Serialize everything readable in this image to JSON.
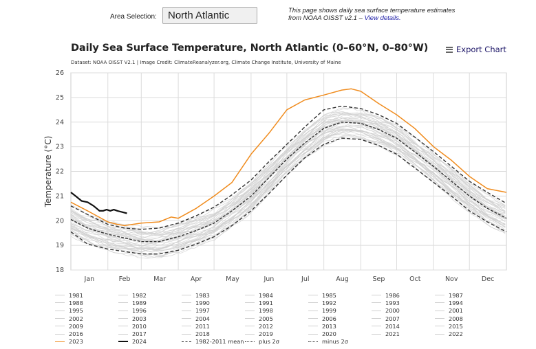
{
  "header": {
    "area_label": "Area Selection:",
    "area_value": "North Atlantic",
    "info_text": "This page shows daily sea surface temperature estimates from NOAA OISST v2.1 – ",
    "info_link": "View details."
  },
  "export_label": "Export Chart",
  "colors": {
    "year": "#cfcfcf",
    "y2023": "#f08c1e",
    "y2024": "#111111",
    "mean": "#333333",
    "grid": "#dcdcdc"
  },
  "chart_data": {
    "type": "line",
    "title": "Daily Sea Surface Temperature, North Atlantic (0–60°N, 0–80°W)",
    "subtitle": "Dataset: NOAA OISST V2.1 | Image Credit: ClimateReanalyzer.org, Climate Change Institute, University of Maine",
    "xlabel": "",
    "ylabel": "Temperature (°C)",
    "ylim": [
      18,
      26
    ],
    "xlim": [
      1,
      366
    ],
    "yticks": [
      18,
      19,
      20,
      21,
      22,
      23,
      24,
      25,
      26
    ],
    "xtick_labels": [
      "Jan",
      "Feb",
      "Mar",
      "Apr",
      "May",
      "Jun",
      "Jul",
      "Aug",
      "Sep",
      "Oct",
      "Nov",
      "Dec"
    ],
    "grid": true,
    "legend_position": "bottom",
    "series": [
      {
        "name": "1982-2011 mean",
        "style": "dashed",
        "x": [
          1,
          15,
          32,
          46,
          60,
          75,
          91,
          106,
          121,
          136,
          152,
          167,
          182,
          197,
          213,
          228,
          244,
          259,
          274,
          289,
          305,
          320,
          335,
          350,
          366
        ],
        "values": [
          20.05,
          19.7,
          19.45,
          19.3,
          19.15,
          19.15,
          19.35,
          19.6,
          19.9,
          20.4,
          21.0,
          21.75,
          22.5,
          23.15,
          23.75,
          24.0,
          23.95,
          23.7,
          23.35,
          22.8,
          22.2,
          21.6,
          21.0,
          20.5,
          20.1
        ]
      },
      {
        "name": "plus 2σ",
        "style": "dash-dot",
        "x": [
          1,
          15,
          32,
          46,
          60,
          75,
          91,
          106,
          121,
          136,
          152,
          167,
          182,
          197,
          213,
          228,
          244,
          259,
          274,
          289,
          305,
          320,
          335,
          350,
          366
        ],
        "values": [
          20.6,
          20.25,
          19.85,
          19.7,
          19.65,
          19.7,
          19.9,
          20.2,
          20.55,
          21.05,
          21.65,
          22.4,
          23.1,
          23.8,
          24.5,
          24.65,
          24.55,
          24.3,
          23.95,
          23.4,
          22.8,
          22.2,
          21.6,
          21.15,
          20.7
        ]
      },
      {
        "name": "minus 2σ",
        "style": "dash-dot",
        "x": [
          1,
          15,
          32,
          46,
          60,
          75,
          91,
          106,
          121,
          136,
          152,
          167,
          182,
          197,
          213,
          228,
          244,
          259,
          274,
          289,
          305,
          320,
          335,
          350,
          366
        ],
        "values": [
          19.55,
          19.05,
          18.85,
          18.75,
          18.65,
          18.65,
          18.8,
          19.05,
          19.35,
          19.8,
          20.4,
          21.1,
          21.85,
          22.55,
          23.1,
          23.35,
          23.3,
          23.05,
          22.7,
          22.15,
          21.55,
          21.0,
          20.4,
          19.95,
          19.55
        ]
      },
      {
        "name": "2023",
        "style": "solid",
        "x": [
          1,
          15,
          32,
          40,
          46,
          60,
          75,
          85,
          91,
          106,
          121,
          136,
          152,
          167,
          182,
          197,
          213,
          228,
          236,
          244,
          259,
          274,
          289,
          305,
          320,
          335,
          350,
          366
        ],
        "values": [
          20.75,
          20.4,
          19.95,
          19.85,
          19.8,
          19.9,
          19.95,
          20.15,
          20.1,
          20.5,
          21.0,
          21.55,
          22.7,
          23.55,
          24.5,
          24.9,
          25.1,
          25.3,
          25.35,
          25.25,
          24.75,
          24.3,
          23.75,
          23.0,
          22.45,
          21.8,
          21.3,
          21.15
        ]
      },
      {
        "name": "2024",
        "style": "solid-bold",
        "x": [
          1,
          5,
          10,
          15,
          20,
          25,
          28,
          31,
          34,
          37,
          40,
          44,
          48
        ],
        "values": [
          21.15,
          21.0,
          20.8,
          20.75,
          20.6,
          20.4,
          20.4,
          20.45,
          20.4,
          20.45,
          20.4,
          20.35,
          20.3
        ]
      }
    ],
    "background_years": [
      "1981",
      "1982",
      "1983",
      "1984",
      "1985",
      "1986",
      "1987",
      "1988",
      "1989",
      "1990",
      "1991",
      "1992",
      "1993",
      "1994",
      "1995",
      "1996",
      "1997",
      "1998",
      "1999",
      "2000",
      "2001",
      "2002",
      "2003",
      "2004",
      "2005",
      "2006",
      "2007",
      "2008",
      "2009",
      "2010",
      "2011",
      "2012",
      "2013",
      "2014",
      "2015",
      "2016",
      "2017",
      "2018",
      "2019",
      "2020",
      "2021",
      "2022"
    ]
  },
  "legend": [
    {
      "label": "1981",
      "type": "year"
    },
    {
      "label": "1982",
      "type": "year"
    },
    {
      "label": "1983",
      "type": "year"
    },
    {
      "label": "1984",
      "type": "year"
    },
    {
      "label": "1985",
      "type": "year"
    },
    {
      "label": "1986",
      "type": "year"
    },
    {
      "label": "1987",
      "type": "year"
    },
    {
      "label": "1988",
      "type": "year"
    },
    {
      "label": "1989",
      "type": "year"
    },
    {
      "label": "1990",
      "type": "year"
    },
    {
      "label": "1991",
      "type": "year"
    },
    {
      "label": "1992",
      "type": "year"
    },
    {
      "label": "1993",
      "type": "year"
    },
    {
      "label": "1994",
      "type": "year"
    },
    {
      "label": "1995",
      "type": "year"
    },
    {
      "label": "1996",
      "type": "year"
    },
    {
      "label": "1997",
      "type": "year"
    },
    {
      "label": "1998",
      "type": "year"
    },
    {
      "label": "1999",
      "type": "year"
    },
    {
      "label": "2000",
      "type": "year"
    },
    {
      "label": "2001",
      "type": "year"
    },
    {
      "label": "2002",
      "type": "year"
    },
    {
      "label": "2003",
      "type": "year"
    },
    {
      "label": "2004",
      "type": "year"
    },
    {
      "label": "2005",
      "type": "year"
    },
    {
      "label": "2006",
      "type": "year"
    },
    {
      "label": "2007",
      "type": "year"
    },
    {
      "label": "2008",
      "type": "year"
    },
    {
      "label": "2009",
      "type": "year"
    },
    {
      "label": "2010",
      "type": "year"
    },
    {
      "label": "2011",
      "type": "year"
    },
    {
      "label": "2012",
      "type": "year"
    },
    {
      "label": "2013",
      "type": "year"
    },
    {
      "label": "2014",
      "type": "year"
    },
    {
      "label": "2015",
      "type": "year"
    },
    {
      "label": "2016",
      "type": "year"
    },
    {
      "label": "2017",
      "type": "year"
    },
    {
      "label": "2018",
      "type": "year"
    },
    {
      "label": "2019",
      "type": "year"
    },
    {
      "label": "2020",
      "type": "year"
    },
    {
      "label": "2021",
      "type": "year"
    },
    {
      "label": "2022",
      "type": "year"
    },
    {
      "label": "2023",
      "type": "y2023"
    },
    {
      "label": "2024",
      "type": "y2024"
    },
    {
      "label": "1982-2011 mean",
      "type": "mean"
    },
    {
      "label": "plus 2σ",
      "type": "plus"
    },
    {
      "label": "minus 2σ",
      "type": "minus"
    }
  ]
}
